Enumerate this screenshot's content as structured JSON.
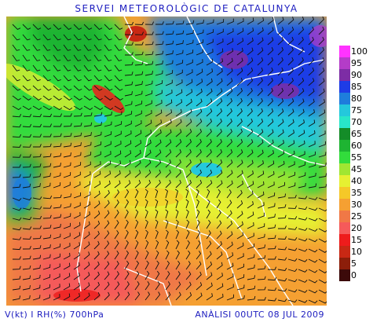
{
  "header": {
    "title": "SERVEI METEOROLÒGIC DE CATALUNYA"
  },
  "footer": {
    "left": "V(kt) I RH(%) 700hPa",
    "right": "ANÀLISI 00UTC 08 JUL 2009"
  },
  "legend": {
    "items": [
      {
        "label": "100",
        "color": "#ff33ff"
      },
      {
        "label": "95",
        "color": "#b43cc8"
      },
      {
        "label": "90",
        "color": "#7d2da5"
      },
      {
        "label": "85",
        "color": "#1e3ce6"
      },
      {
        "label": "80",
        "color": "#1e7ddc"
      },
      {
        "label": "75",
        "color": "#24c8dc"
      },
      {
        "label": "70",
        "color": "#28e6c8"
      },
      {
        "label": "65",
        "color": "#148c28"
      },
      {
        "label": "60",
        "color": "#1eb432"
      },
      {
        "label": "55",
        "color": "#32dc3c"
      },
      {
        "label": "45",
        "color": "#a0e632"
      },
      {
        "label": "40",
        "color": "#e6f032"
      },
      {
        "label": "35",
        "color": "#f5c828"
      },
      {
        "label": "30",
        "color": "#f5a032"
      },
      {
        "label": "25",
        "color": "#f07846"
      },
      {
        "label": "20",
        "color": "#f55a5a"
      },
      {
        "label": "15",
        "color": "#ee1c1c"
      },
      {
        "label": "10",
        "color": "#c82814"
      },
      {
        "label": "5",
        "color": "#8c1e0a"
      },
      {
        "label": "0",
        "color": "#3c0a0a"
      }
    ]
  },
  "map": {
    "field": "relative-humidity",
    "overlay": "wind-barbs",
    "borders": "white"
  }
}
